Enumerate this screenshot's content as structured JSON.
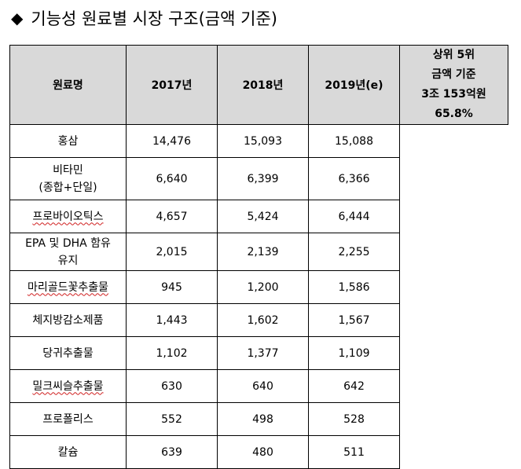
{
  "title": "기능성 원료별 시장 구조(금액 기준)",
  "title_icon": "diamond-bullet-icon",
  "table": {
    "headers": [
      "원료명",
      "2017년",
      "2018년",
      "2019년(e)"
    ],
    "rows": [
      {
        "name_line1": "홍삼",
        "name_line2": "",
        "v2017": "14,476",
        "v2018": "15,093",
        "v2019": "15,088"
      },
      {
        "name_line1": "비타민",
        "name_line2": "(종합+단일)",
        "v2017": "6,640",
        "v2018": "6,399",
        "v2019": "6,366"
      },
      {
        "name_line1": "프로바이오틱스",
        "name_line2": "",
        "v2017": "4,657",
        "v2018": "5,424",
        "v2019": "6,444"
      },
      {
        "name_line1": "EPA 및 DHA 함유",
        "name_line2": "유지",
        "v2017": "2,015",
        "v2018": "2,139",
        "v2019": "2,255"
      },
      {
        "name_line1": "마리골드꽃추출물",
        "name_line2": "",
        "v2017": "945",
        "v2018": "1,200",
        "v2019": "1,586"
      },
      {
        "name_line1": "체지방감소제품",
        "name_line2": "",
        "v2017": "1,443",
        "v2018": "1,602",
        "v2019": "1,567"
      },
      {
        "name_line1": "당귀추출물",
        "name_line2": "",
        "v2017": "1,102",
        "v2018": "1,377",
        "v2019": "1,109"
      },
      {
        "name_line1": "밀크씨슬추출물",
        "name_line2": "",
        "v2017": "630",
        "v2018": "640",
        "v2019": "642"
      },
      {
        "name_line1": "프로폴리스",
        "name_line2": "",
        "v2017": "552",
        "v2018": "498",
        "v2019": "528"
      },
      {
        "name_line1": "칼슘",
        "name_line2": "",
        "v2017": "639",
        "v2018": "480",
        "v2019": "511"
      }
    ],
    "summary": {
      "line1": "상위 5위",
      "line2": "금액 기준",
      "line3": "3조 153억원",
      "line4": "65.8%"
    }
  }
}
